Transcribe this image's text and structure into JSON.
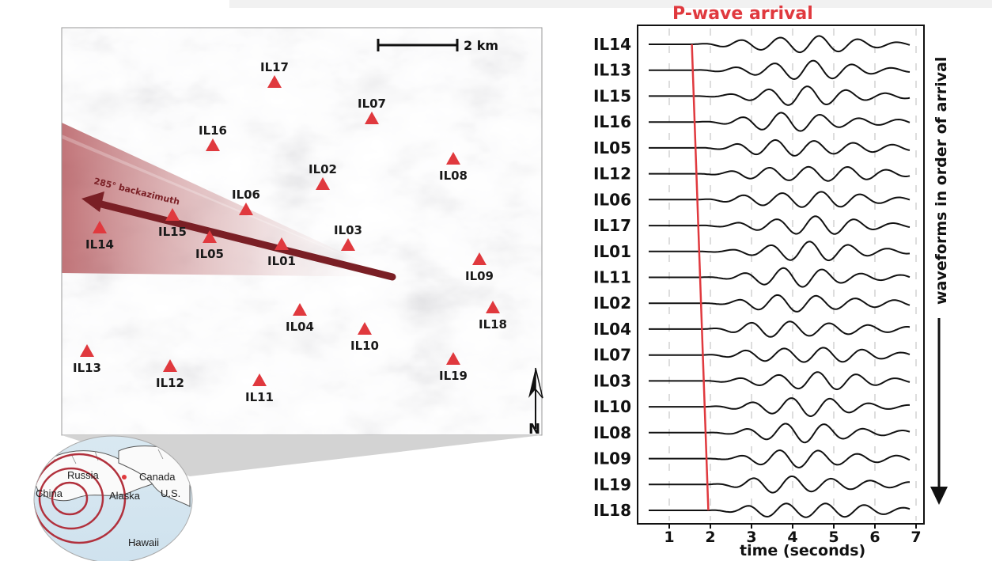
{
  "map": {
    "scale_label": "2 km",
    "north_label": "N",
    "backazimuth_label": "285° backazimuth",
    "colors": {
      "station": "#e0393e",
      "arrow": "#7a1f25",
      "terrain": "#d9d9d9"
    },
    "stations": [
      {
        "id": "IL17"
      },
      {
        "id": "IL07"
      },
      {
        "id": "IL16"
      },
      {
        "id": "IL02"
      },
      {
        "id": "IL08"
      },
      {
        "id": "IL06"
      },
      {
        "id": "IL14"
      },
      {
        "id": "IL15"
      },
      {
        "id": "IL05"
      },
      {
        "id": "IL01"
      },
      {
        "id": "IL03"
      },
      {
        "id": "IL09"
      },
      {
        "id": "IL04"
      },
      {
        "id": "IL18"
      },
      {
        "id": "IL10"
      },
      {
        "id": "IL13"
      },
      {
        "id": "IL12"
      },
      {
        "id": "IL11"
      },
      {
        "id": "IL19"
      }
    ]
  },
  "globe": {
    "labels": [
      "Russia",
      "Canada",
      "China",
      "Alaska",
      "U.S.",
      "Hawaii"
    ]
  },
  "waveforms": {
    "title": "P-wave arrival",
    "side_label": "waveforms in order of arrival",
    "xlabel": "time (seconds)",
    "ticks": [
      "1",
      "2",
      "3",
      "4",
      "5",
      "6",
      "7"
    ],
    "xlim": [
      0.5,
      7
    ],
    "colors": {
      "pick": "#e0393e",
      "trace": "#111111"
    },
    "p_arrival_first_s": 1.55,
    "p_arrival_last_s": 1.95,
    "traces": [
      "IL14",
      "IL13",
      "IL15",
      "IL16",
      "IL05",
      "IL12",
      "IL06",
      "IL17",
      "IL01",
      "IL11",
      "IL02",
      "IL04",
      "IL07",
      "IL03",
      "IL10",
      "IL08",
      "IL09",
      "IL19",
      "IL18"
    ]
  }
}
